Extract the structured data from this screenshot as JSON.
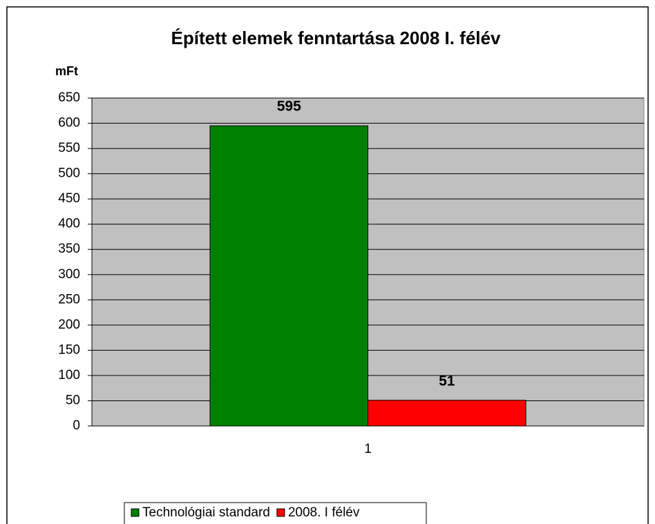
{
  "chart_data": {
    "type": "bar",
    "title": "Épített elemek fenntartása 2008 I. félév",
    "y_axis_label": "mFt",
    "categories": [
      "1"
    ],
    "series": [
      {
        "name": "Technológiai standard",
        "color": "#008000",
        "values": [
          595
        ]
      },
      {
        "name": "2008. I félév",
        "color": "#ff0000",
        "values": [
          51
        ]
      }
    ],
    "ylim": [
      0,
      650
    ],
    "yticks": [
      0,
      50,
      100,
      150,
      200,
      250,
      300,
      350,
      400,
      450,
      500,
      550,
      600,
      650
    ],
    "grid": true,
    "plot_background": "#c0c0c0",
    "legend": "bottom"
  }
}
